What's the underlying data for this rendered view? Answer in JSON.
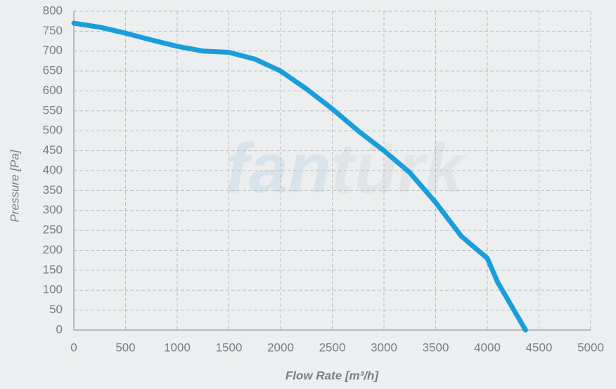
{
  "chart_data": {
    "type": "line",
    "watermark": [
      "fan",
      "türk"
    ],
    "xlabel": "Flow Rate [m³/h]",
    "ylabel": "Pressure [Pa]",
    "x": [
      0,
      250,
      500,
      750,
      1000,
      1250,
      1500,
      1750,
      2000,
      2250,
      2500,
      2750,
      3000,
      3250,
      3500,
      3750,
      4000,
      4100,
      4370
    ],
    "series": [
      {
        "name": "Pressure",
        "color": "#1a9edb",
        "values": [
          770,
          760,
          745,
          728,
          712,
          700,
          697,
          680,
          650,
          605,
          555,
          500,
          450,
          395,
          320,
          235,
          180,
          120,
          0
        ]
      }
    ],
    "xlim": [
      0,
      5000
    ],
    "xticks": [
      0,
      500,
      1000,
      1500,
      2000,
      2500,
      3000,
      3500,
      4000,
      4500,
      5000
    ],
    "ylim": [
      0,
      800
    ],
    "yticks": [
      0,
      50,
      100,
      150,
      200,
      250,
      300,
      350,
      400,
      450,
      500,
      550,
      600,
      650,
      700,
      750,
      800
    ],
    "grid": true
  }
}
